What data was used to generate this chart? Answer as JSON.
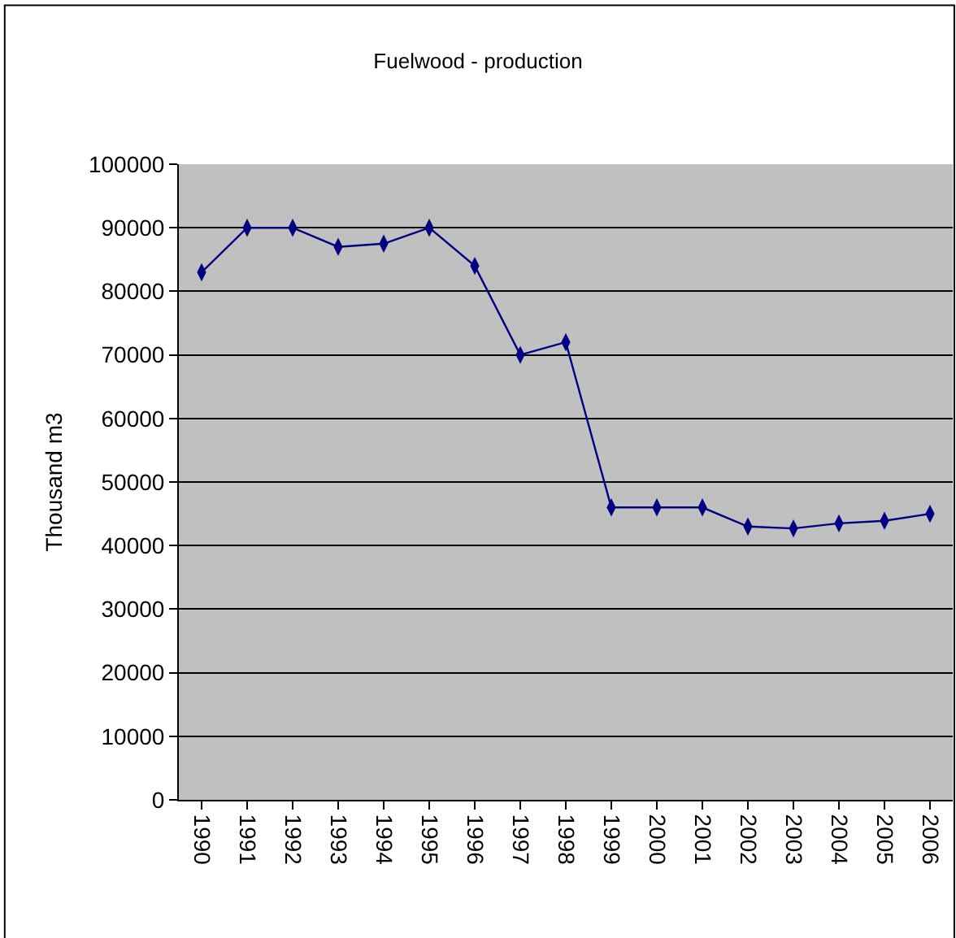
{
  "chart_data": {
    "type": "line",
    "title": "Fuelwood - production",
    "ylabel": "Thousand m3",
    "categories": [
      "1990",
      "1991",
      "1992",
      "1993",
      "1994",
      "1995",
      "1996",
      "1997",
      "1998",
      "1999",
      "2000",
      "2001",
      "2002",
      "2003",
      "2004",
      "2005",
      "2006"
    ],
    "series": [
      {
        "color": "#000080",
        "values": [
          83000,
          90000,
          90000,
          87000,
          87500,
          90000,
          84000,
          70000,
          72000,
          46000,
          46000,
          46000,
          43000,
          42700,
          43500,
          43900,
          45000
        ]
      }
    ],
    "ylim": [
      0,
      100000
    ],
    "yticks": [
      0,
      10000,
      20000,
      30000,
      40000,
      50000,
      60000,
      70000,
      80000,
      90000,
      100000
    ],
    "grid": "y",
    "marker": "diamond",
    "line_style": "solid"
  }
}
